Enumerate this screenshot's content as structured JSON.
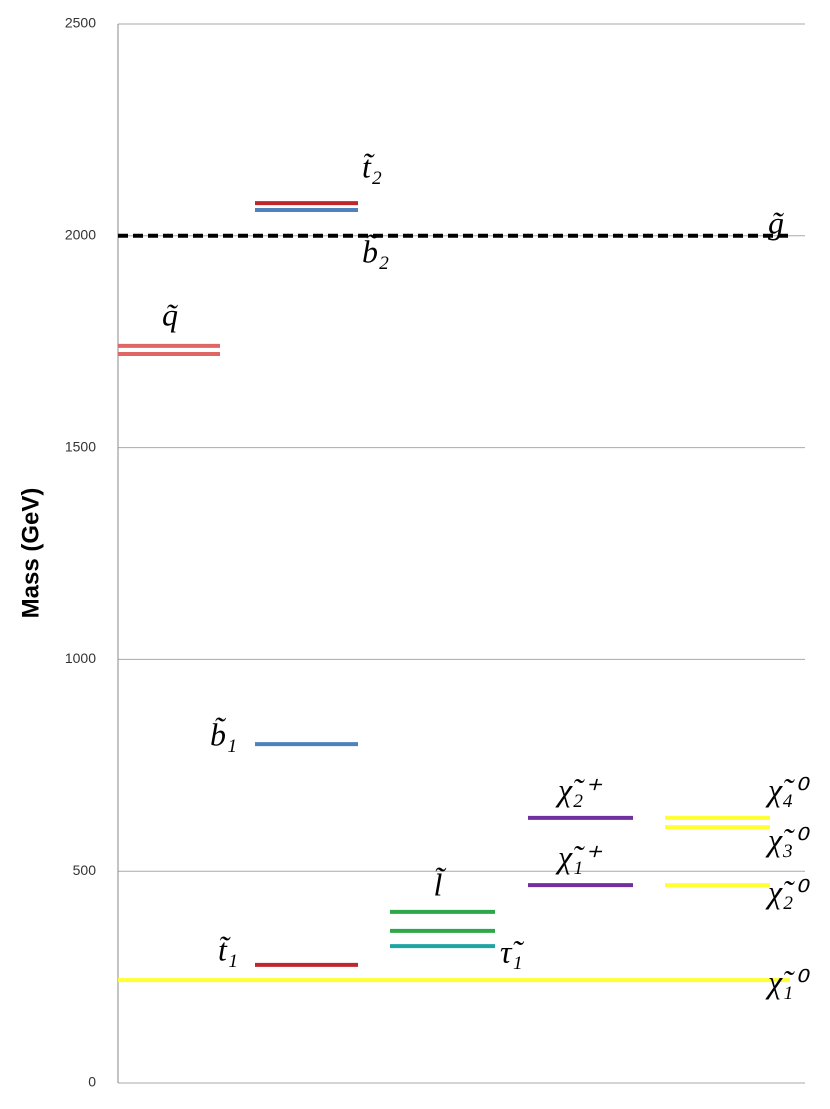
{
  "chart_data": {
    "type": "level",
    "ylabel": "Mass (GeV)",
    "ylim": [
      0,
      2500
    ],
    "yticks": [
      0,
      500,
      1000,
      1500,
      2000,
      2500
    ],
    "grid": true,
    "series": [
      {
        "name": "q̃",
        "color": "#e06666",
        "values": [
          1740,
          1721
        ]
      },
      {
        "name": "t̃₂",
        "color": "#c0272d",
        "values": [
          2077
        ]
      },
      {
        "name": "b̃₂",
        "color": "#4f81bd",
        "values": [
          2061
        ]
      },
      {
        "name": "g̃",
        "color": "#000000",
        "dashed": true,
        "values": [
          2000
        ]
      },
      {
        "name": "b̃₁",
        "color": "#4f81bd",
        "values": [
          800
        ]
      },
      {
        "name": "t̃₁",
        "color": "#c0272d",
        "values": [
          279
        ]
      },
      {
        "name": "l̃",
        "color": "#2ea64a",
        "values": [
          404,
          359
        ]
      },
      {
        "name": "τ̃₁",
        "color": "#1fa3a3",
        "values": [
          323
        ]
      },
      {
        "name": "χ̃₂⁺",
        "color": "#7030a0",
        "values": [
          626
        ]
      },
      {
        "name": "χ̃₁⁺",
        "color": "#7030a0",
        "values": [
          467
        ]
      },
      {
        "name": "χ̃₄⁰",
        "color": "#ffff33",
        "values": [
          626
        ]
      },
      {
        "name": "χ̃₃⁰",
        "color": "#ffff33",
        "values": [
          604
        ]
      },
      {
        "name": "χ̃₂⁰",
        "color": "#ffff33",
        "values": [
          467
        ]
      },
      {
        "name": "χ̃₁⁰",
        "color": "#ffff33",
        "values": [
          243
        ]
      }
    ]
  }
}
